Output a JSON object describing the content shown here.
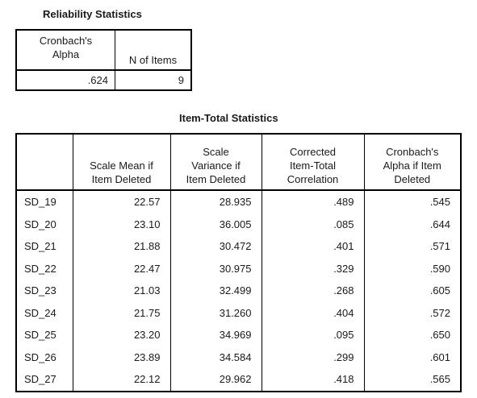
{
  "reliability": {
    "title": "Reliability Statistics",
    "headers": {
      "alpha_line1": "Cronbach's",
      "alpha_line2": "Alpha",
      "n_items": "N of Items"
    },
    "values": {
      "alpha": ".624",
      "n_items": "9"
    }
  },
  "item_total": {
    "title": "Item-Total Statistics",
    "headers": [
      [
        "",
        "",
        ""
      ],
      [
        "",
        "Scale Mean if",
        "Item Deleted"
      ],
      [
        "Scale",
        "Variance if",
        "Item Deleted"
      ],
      [
        "Corrected",
        "Item-Total",
        "Correlation"
      ],
      [
        "Cronbach's",
        "Alpha if Item",
        "Deleted"
      ]
    ],
    "rows": [
      [
        "SD_19",
        "22.57",
        "28.935",
        ".489",
        ".545"
      ],
      [
        "SD_20",
        "23.10",
        "36.005",
        ".085",
        ".644"
      ],
      [
        "SD_21",
        "21.88",
        "30.472",
        ".401",
        ".571"
      ],
      [
        "SD_22",
        "22.47",
        "30.975",
        ".329",
        ".590"
      ],
      [
        "SD_23",
        "21.03",
        "32.499",
        ".268",
        ".605"
      ],
      [
        "SD_24",
        "21.75",
        "31.260",
        ".404",
        ".572"
      ],
      [
        "SD_25",
        "23.20",
        "34.969",
        ".095",
        ".650"
      ],
      [
        "SD_26",
        "23.89",
        "34.584",
        ".299",
        ".601"
      ],
      [
        "SD_27",
        "22.12",
        "29.962",
        ".418",
        ".565"
      ]
    ]
  }
}
